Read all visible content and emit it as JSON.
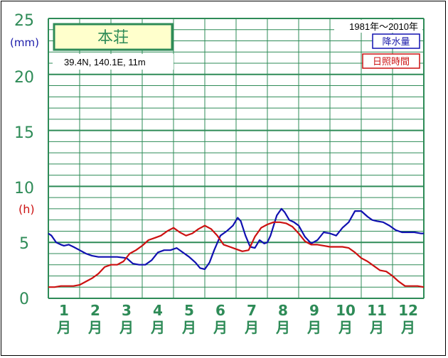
{
  "chart_data": {
    "type": "line",
    "station": "本荘",
    "coords": "39.4N,  140.1E,  11m",
    "period": "1981年〜2010年",
    "y_ticks": [
      "0",
      "5",
      "10",
      "15",
      "20",
      "25"
    ],
    "ylim": [
      0,
      25
    ],
    "unit_left_rain": "(mm)",
    "unit_left_sun": "(h)",
    "months": [
      {
        "num": "1",
        "kanji": "月"
      },
      {
        "num": "2",
        "kanji": "月"
      },
      {
        "num": "3",
        "kanji": "月"
      },
      {
        "num": "4",
        "kanji": "月"
      },
      {
        "num": "5",
        "kanji": "月"
      },
      {
        "num": "6",
        "kanji": "月"
      },
      {
        "num": "7",
        "kanji": "月"
      },
      {
        "num": "8",
        "kanji": "月"
      },
      {
        "num": "9",
        "kanji": "月"
      },
      {
        "num": "10",
        "kanji": "月"
      },
      {
        "num": "11",
        "kanji": "月"
      },
      {
        "num": "12",
        "kanji": "月"
      }
    ],
    "x_range": [
      0.5,
      12.5
    ],
    "grid": true,
    "legend_placement": "top-right",
    "series": [
      {
        "name": "降水量",
        "color": "#1010b0",
        "x": [
          0.5,
          0.6,
          0.75,
          0.9,
          1.0,
          1.15,
          1.3,
          1.5,
          1.7,
          1.9,
          2.1,
          2.4,
          2.7,
          3.0,
          3.2,
          3.4,
          3.6,
          3.8,
          4.0,
          4.2,
          4.4,
          4.6,
          4.8,
          5.0,
          5.2,
          5.35,
          5.5,
          5.65,
          5.8,
          6.0,
          6.2,
          6.4,
          6.55,
          6.65,
          6.8,
          6.95,
          7.1,
          7.25,
          7.4,
          7.5,
          7.6,
          7.8,
          7.95,
          8.05,
          8.2,
          8.35,
          8.5,
          8.7,
          8.9,
          9.1,
          9.3,
          9.5,
          9.7,
          9.9,
          10.1,
          10.3,
          10.5,
          10.7,
          10.85,
          11.0,
          11.2,
          11.4,
          11.6,
          11.8,
          12.0,
          12.2,
          12.4,
          12.5
        ],
        "y": [
          5.8,
          5.6,
          5.0,
          4.8,
          4.7,
          4.8,
          4.6,
          4.3,
          4.0,
          3.8,
          3.7,
          3.7,
          3.7,
          3.6,
          3.1,
          3.0,
          3.0,
          3.4,
          4.1,
          4.3,
          4.3,
          4.5,
          4.1,
          3.7,
          3.2,
          2.7,
          2.6,
          3.2,
          4.3,
          5.6,
          6.0,
          6.5,
          7.2,
          6.9,
          5.6,
          4.6,
          4.5,
          5.2,
          4.9,
          5.0,
          5.6,
          7.4,
          8.0,
          7.7,
          7.0,
          6.8,
          6.5,
          5.5,
          4.9,
          5.2,
          5.9,
          5.8,
          5.6,
          6.3,
          6.8,
          7.8,
          7.8,
          7.3,
          7.0,
          6.9,
          6.8,
          6.5,
          6.1,
          5.9,
          5.9,
          5.9,
          5.8,
          5.8
        ]
      },
      {
        "name": "日照時間",
        "color": "#cc1111",
        "x": [
          0.5,
          0.7,
          0.9,
          1.1,
          1.3,
          1.5,
          1.7,
          1.9,
          2.1,
          2.3,
          2.5,
          2.7,
          2.9,
          3.1,
          3.3,
          3.5,
          3.7,
          3.9,
          4.1,
          4.3,
          4.5,
          4.7,
          4.9,
          5.1,
          5.3,
          5.5,
          5.7,
          5.9,
          6.1,
          6.3,
          6.5,
          6.7,
          6.9,
          7.1,
          7.3,
          7.5,
          7.7,
          7.9,
          8.1,
          8.3,
          8.5,
          8.7,
          8.9,
          9.1,
          9.3,
          9.5,
          9.7,
          9.9,
          10.1,
          10.3,
          10.5,
          10.7,
          10.9,
          11.1,
          11.3,
          11.5,
          11.7,
          11.9,
          12.1,
          12.3,
          12.5
        ],
        "y": [
          1.0,
          1.0,
          1.1,
          1.1,
          1.1,
          1.2,
          1.5,
          1.8,
          2.2,
          2.8,
          3.0,
          3.0,
          3.3,
          4.0,
          4.3,
          4.7,
          5.2,
          5.4,
          5.6,
          6.0,
          6.3,
          5.9,
          5.6,
          5.8,
          6.2,
          6.5,
          6.2,
          5.6,
          4.8,
          4.6,
          4.4,
          4.2,
          4.3,
          5.5,
          6.3,
          6.6,
          6.8,
          6.8,
          6.7,
          6.4,
          5.8,
          5.1,
          4.8,
          4.8,
          4.7,
          4.6,
          4.6,
          4.6,
          4.5,
          4.1,
          3.6,
          3.3,
          2.9,
          2.5,
          2.4,
          2.0,
          1.5,
          1.1,
          1.1,
          1.1,
          1.0
        ]
      }
    ]
  }
}
